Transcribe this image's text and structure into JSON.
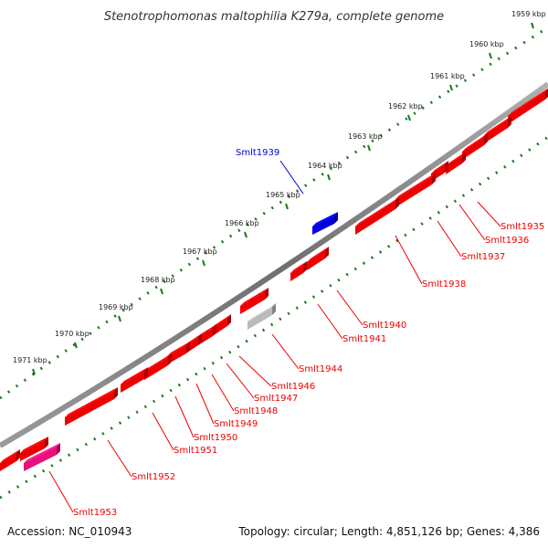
{
  "title": "Stenotrophomonas maltophilia K279a, complete genome",
  "footer": {
    "accession": "Accession: NC_010943",
    "summary": "Topology: circular; Length: 4,851,126 bp; Genes: 4,386"
  },
  "colors": {
    "forward_gene": "#ee0000",
    "reverse_gene": "#ee0000",
    "highlight_gene": "#0000dd",
    "gray_gene": "#bbbbbb",
    "pink_gene": "#e8107a",
    "ticks": "#1a7a1a",
    "backbone": "#808080"
  },
  "kbp_labels": [
    "1959 kbp",
    "1960 kbp",
    "1961 kbp",
    "1962 kbp",
    "1963 kbp",
    "1964 kbp",
    "1965 kbp",
    "1966 kbp",
    "1967 kbp",
    "1968 kbp",
    "1969 kbp",
    "1970 kbp",
    "1971 kbp"
  ],
  "gene_labels": [
    "Smlt1939",
    "Smlt1935",
    "Smlt1936",
    "Smlt1937",
    "Smlt1938",
    "Smlt1940",
    "Smlt1941",
    "Smlt1944",
    "Smlt1946",
    "Smlt1947",
    "Smlt1948",
    "Smlt1949",
    "Smlt1950",
    "Smlt1951",
    "Smlt1952",
    "Smlt1953"
  ]
}
